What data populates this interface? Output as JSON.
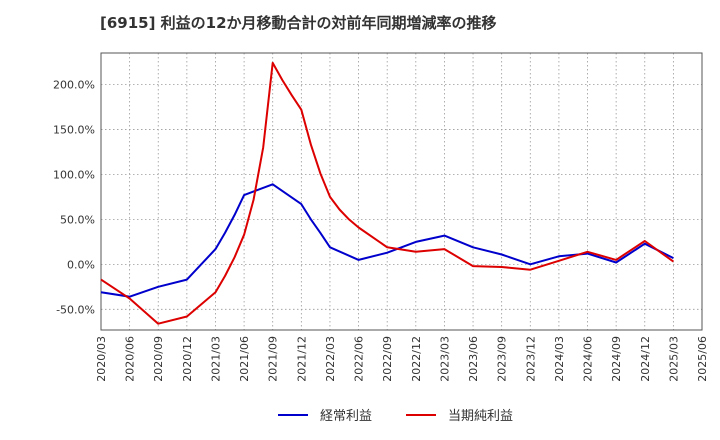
{
  "header": {
    "title": "[6915]  利益の12か月移動合計の対前年同期増減率の推移"
  },
  "chart_data": {
    "type": "line",
    "title": "[6915]  利益の12か月移動合計の対前年同期増減率の推移",
    "xlabel": "",
    "ylabel": "",
    "ylim": [
      -73,
      235
    ],
    "y_ticks": [
      -50,
      0,
      50,
      100,
      150,
      200
    ],
    "y_tick_labels": [
      "-50.0%",
      "0.0%",
      "50.0%",
      "100.0%",
      "150.0%",
      "200.0%"
    ],
    "x_tick_labels": [
      "2020/03",
      "2020/06",
      "2020/09",
      "2020/12",
      "2021/03",
      "2021/06",
      "2021/09",
      "2021/12",
      "2022/03",
      "2022/06",
      "2022/09",
      "2022/12",
      "2023/03",
      "2023/06",
      "2023/09",
      "2023/12",
      "2024/03",
      "2024/06",
      "2024/09",
      "2024/12",
      "2025/03",
      "2025/06"
    ],
    "grid": true,
    "legend_position": "bottom",
    "series": [
      {
        "name": "経常利益",
        "color": "#0000cc",
        "points": [
          [
            0,
            -31
          ],
          [
            3,
            -36
          ],
          [
            6,
            -25
          ],
          [
            9,
            -17
          ],
          [
            12,
            17
          ],
          [
            13,
            35
          ],
          [
            14,
            55
          ],
          [
            15,
            77
          ],
          [
            18,
            89
          ],
          [
            21,
            67
          ],
          [
            22,
            50
          ],
          [
            23,
            35
          ],
          [
            24,
            19
          ],
          [
            27,
            5
          ],
          [
            30,
            13
          ],
          [
            33,
            25
          ],
          [
            36,
            32
          ],
          [
            39,
            19
          ],
          [
            42,
            11
          ],
          [
            45,
            0
          ],
          [
            48,
            9
          ],
          [
            51,
            12
          ],
          [
            54,
            2
          ],
          [
            57,
            23
          ],
          [
            60,
            7
          ]
        ]
      },
      {
        "name": "当期純利益",
        "color": "#dd0000",
        "points": [
          [
            0,
            -17
          ],
          [
            3,
            -38
          ],
          [
            6,
            -66
          ],
          [
            9,
            -58
          ],
          [
            12,
            -31
          ],
          [
            13,
            -13
          ],
          [
            14,
            8
          ],
          [
            15,
            33
          ],
          [
            16,
            72
          ],
          [
            17,
            130
          ],
          [
            18,
            224
          ],
          [
            19,
            205
          ],
          [
            20,
            188
          ],
          [
            21,
            172
          ],
          [
            22,
            133
          ],
          [
            23,
            101
          ],
          [
            24,
            75
          ],
          [
            25,
            61
          ],
          [
            26,
            50
          ],
          [
            27,
            41
          ],
          [
            30,
            19
          ],
          [
            33,
            14
          ],
          [
            36,
            17
          ],
          [
            39,
            -2
          ],
          [
            42,
            -3
          ],
          [
            45,
            -6
          ],
          [
            48,
            4
          ],
          [
            51,
            14
          ],
          [
            54,
            5
          ],
          [
            57,
            26
          ],
          [
            60,
            3
          ]
        ]
      }
    ]
  }
}
